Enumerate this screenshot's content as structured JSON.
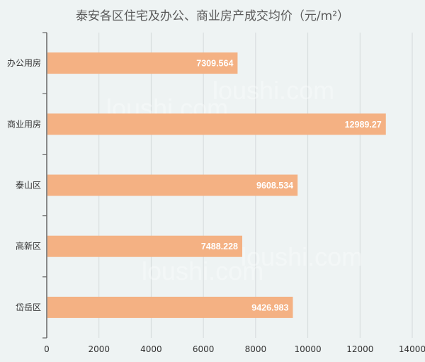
{
  "chart_data": {
    "type": "bar",
    "orientation": "horizontal",
    "title": "泰安各区住宅及办公、商业房产成交均价（元/m²）",
    "categories": [
      "办公用房",
      "商业用房",
      "泰山区",
      "高新区",
      "岱岳区"
    ],
    "values": [
      7309.564,
      12989.27,
      9608.534,
      7488.228,
      9426.983
    ],
    "value_labels": [
      "7309.564",
      "12989.27",
      "9608.534",
      "7488.228",
      "9426.983"
    ],
    "xlim": [
      0,
      14000
    ],
    "x_ticks": [
      0,
      2000,
      4000,
      6000,
      8000,
      10000,
      12000,
      14000
    ],
    "grid": "vertical",
    "bar_color": "#f4b183",
    "xlabel": "",
    "ylabel": ""
  },
  "watermark": "loushi.com"
}
